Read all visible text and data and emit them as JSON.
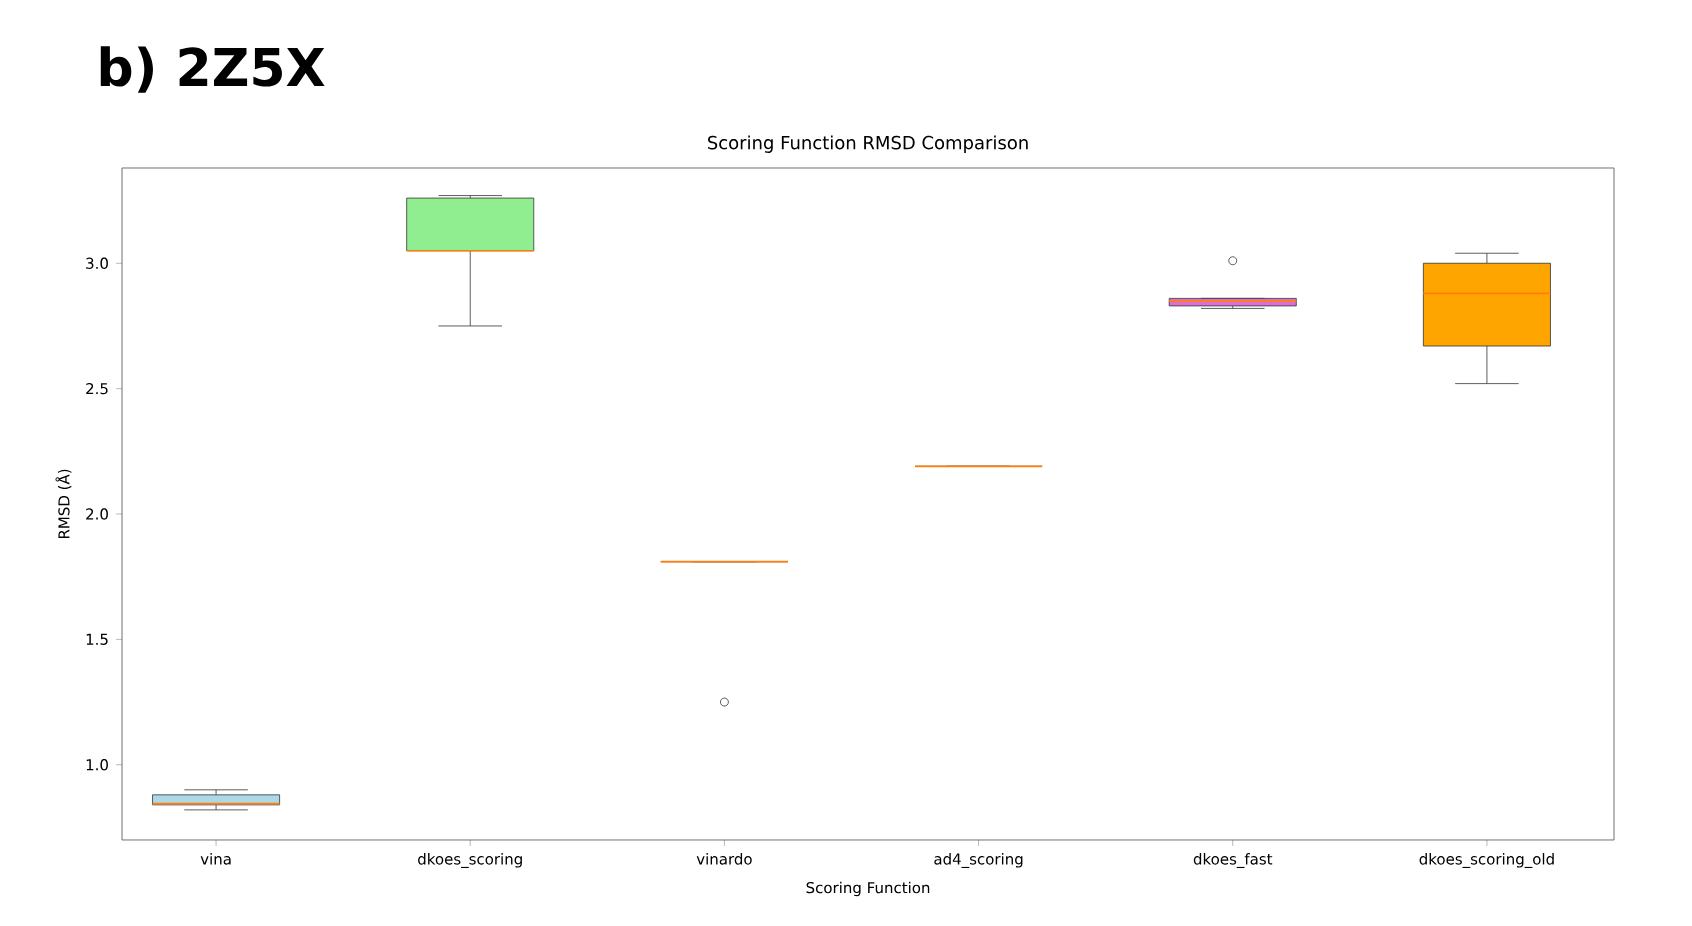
{
  "chart_data": {
    "type": "box",
    "title": "Scoring Function RMSD Comparison",
    "xlabel": "Scoring Function",
    "ylabel": "RMSD (Å)",
    "annotations": [
      "**b) 2Z5X**"
    ],
    "categories": [
      "vina",
      "dkoes_scoring",
      "vinardo",
      "ad4_scoring",
      "dkoes_fast",
      "dkoes_scoring_old"
    ],
    "colors": [
      "#add8e6",
      "#90ee90",
      null,
      null,
      "#da70d6",
      "#ffa500"
    ],
    "boxes": [
      {
        "low": 0.82,
        "q1": 0.84,
        "median": 0.845,
        "q3": 0.88,
        "high": 0.9
      },
      {
        "low": 2.75,
        "q1": 3.05,
        "median": 3.05,
        "q3": 3.26,
        "high": 3.27
      },
      {
        "low": 1.81,
        "q1": 1.81,
        "median": 1.81,
        "q3": 1.81,
        "high": 1.81,
        "outliers": [
          1.25
        ]
      },
      {
        "low": 2.19,
        "q1": 2.19,
        "median": 2.19,
        "q3": 2.19,
        "high": 2.19
      },
      {
        "low": 2.82,
        "q1": 2.83,
        "median": 2.85,
        "q3": 2.86,
        "high": 2.86,
        "outliers": [
          3.01
        ]
      },
      {
        "low": 2.52,
        "q1": 2.67,
        "median": 2.88,
        "q3": 3.0,
        "high": 3.04
      }
    ],
    "ylim": [
      0.7,
      3.38
    ],
    "yticks": [
      {
        "value": 1.0,
        "label": "1.0"
      },
      {
        "value": 1.5,
        "label": "1.5"
      },
      {
        "value": 2.0,
        "label": "2.0"
      },
      {
        "value": 2.5,
        "label": "2.5"
      },
      {
        "value": 3.0,
        "label": "3.0"
      }
    ]
  }
}
